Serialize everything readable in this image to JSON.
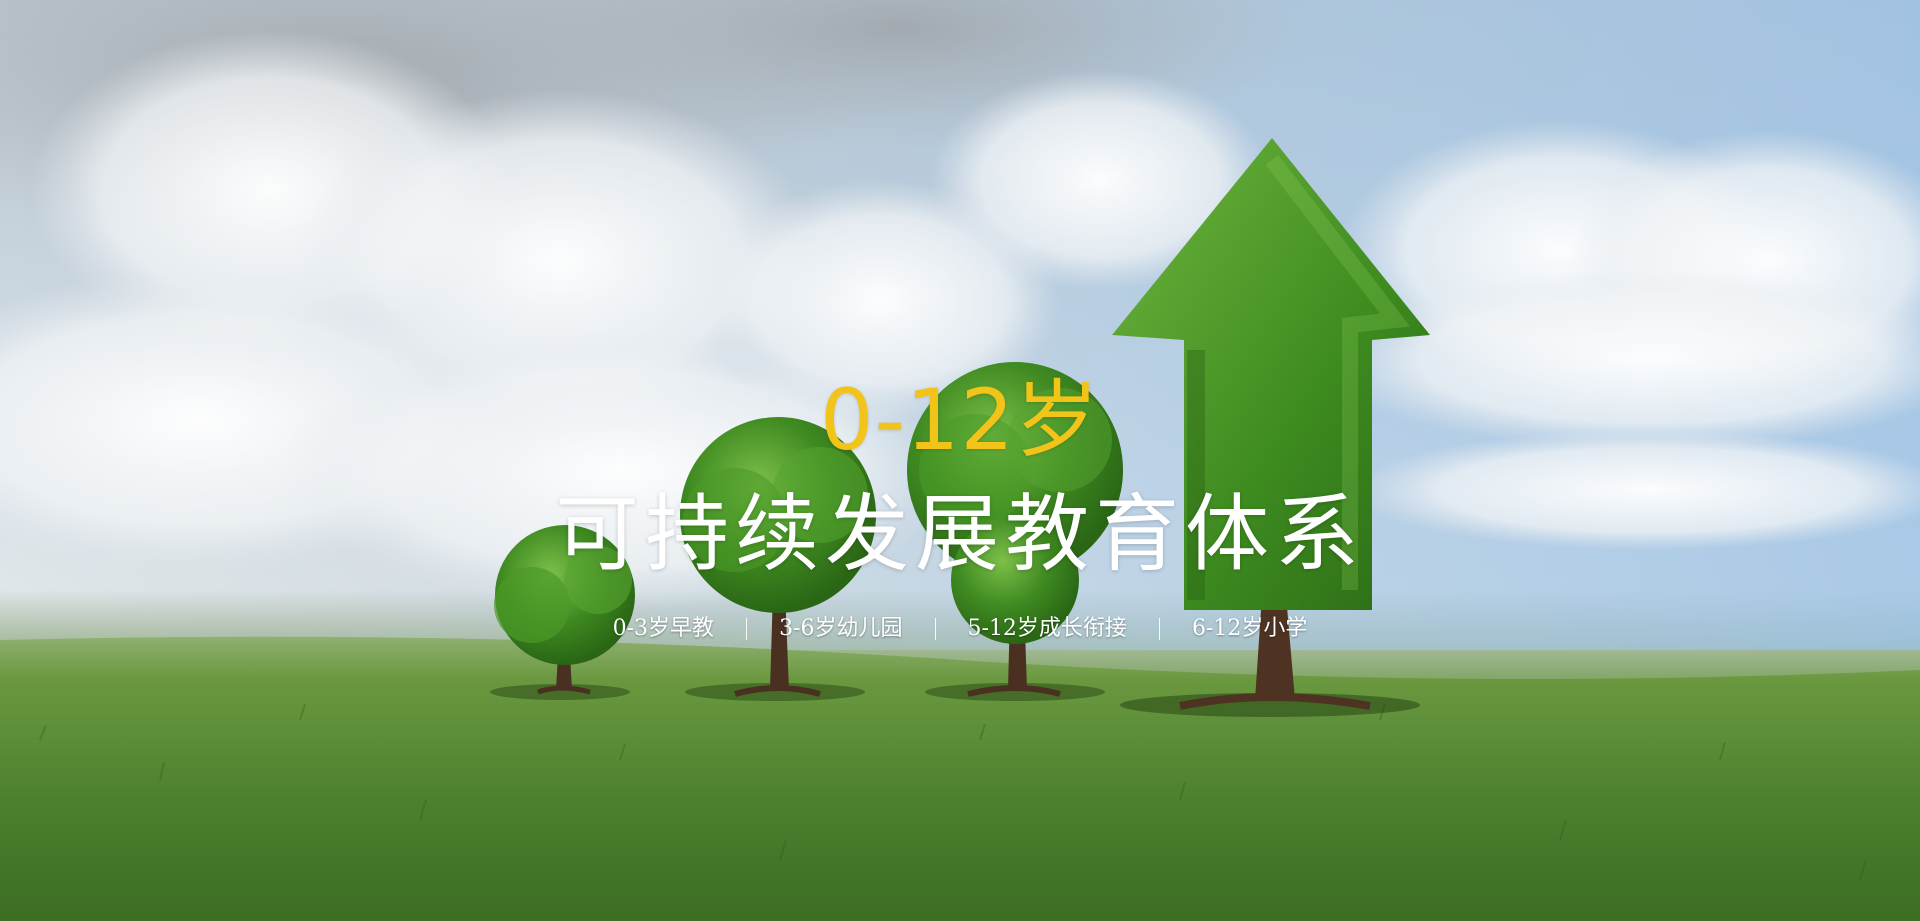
{
  "hero": {
    "kicker": "0-12岁",
    "headline": "可持续发展教育体系",
    "stages": [
      {
        "label": "0-3岁早教"
      },
      {
        "label": "3-6岁幼儿园"
      },
      {
        "label": "5-12岁成长衔接"
      },
      {
        "label": "6-12岁小学"
      }
    ],
    "image_subject": "four-trees-growing-with-arrow-shaped-tree",
    "colors": {
      "kicker": "#f2c318",
      "headline": "#ffffff",
      "stages": "#ffffff",
      "foliage": "#3f8a21",
      "grass": "#4f8331"
    }
  }
}
